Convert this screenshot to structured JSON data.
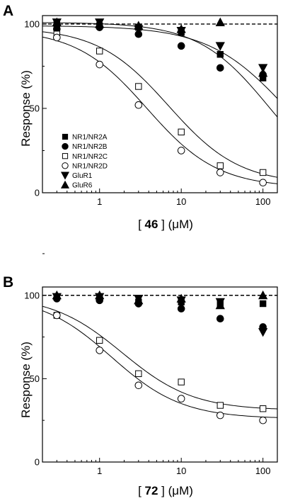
{
  "chart_data": [
    {
      "type": "scatter",
      "panel_label": "A",
      "xlabel_parts": [
        "[ ",
        "46",
        " ] (",
        "μ",
        "M)"
      ],
      "ylabel": "Response (%)",
      "x_scale": "log",
      "xlim": [
        0.2,
        150
      ],
      "ylim": [
        0,
        105
      ],
      "x_ticks": [
        1,
        10,
        100
      ],
      "x_tick_labels": [
        "1",
        "10",
        "100"
      ],
      "y_ticks": [
        0,
        50,
        100
      ],
      "y_tick_labels": [
        "0",
        "50",
        "100"
      ],
      "reference_line_y": 100,
      "legend_placement": "lower-left",
      "series": [
        {
          "name": "NR1/NR2A",
          "marker": "square-filled",
          "x": [
            0.3,
            1,
            3,
            10,
            30,
            100
          ],
          "y": [
            100,
            99,
            98,
            95,
            82,
            68
          ]
        },
        {
          "name": "NR1/NR2B",
          "marker": "circle-filled",
          "x": [
            0.3,
            1,
            3,
            10,
            30,
            100
          ],
          "y": [
            97,
            98,
            94,
            87,
            74,
            70
          ]
        },
        {
          "name": "NR1/NR2C",
          "marker": "square-open",
          "x": [
            0.3,
            1,
            3,
            10,
            30,
            100
          ],
          "y": [
            94,
            84,
            63,
            36,
            16,
            12
          ]
        },
        {
          "name": "NR1/NR2D",
          "marker": "circle-open",
          "x": [
            0.3,
            1,
            3,
            10,
            30,
            100
          ],
          "y": [
            92,
            76,
            52,
            25,
            12,
            6
          ]
        },
        {
          "name": "GluR1",
          "marker": "triangle-down-filled",
          "x": [
            0.3,
            1,
            3,
            10,
            30,
            100
          ],
          "y": [
            101,
            101,
            97,
            96,
            87,
            74
          ]
        },
        {
          "name": "GluR6",
          "marker": "triangle-up-filled",
          "x": [
            0.3,
            1,
            3,
            10,
            30,
            100
          ],
          "y": [
            101,
            100,
            99,
            97,
            101,
            71
          ]
        }
      ],
      "fit_curves": [
        {
          "top": 101,
          "bottom": 0,
          "ic50": 120,
          "hill": 1.0
        },
        {
          "top": 99,
          "bottom": 0,
          "ic50": 200,
          "hill": 0.9
        },
        {
          "top": 98,
          "bottom": 5,
          "ic50": 7,
          "hill": 1.0
        },
        {
          "top": 97,
          "bottom": 3,
          "ic50": 3.8,
          "hill": 1.0
        }
      ]
    },
    {
      "type": "scatter",
      "panel_label": "B",
      "xlabel_parts": [
        "[ ",
        "72",
        " ] (",
        "μ",
        "M)"
      ],
      "ylabel": "Response (%)",
      "x_scale": "log",
      "xlim": [
        0.2,
        150
      ],
      "ylim": [
        0,
        105
      ],
      "x_ticks": [
        1,
        10,
        100
      ],
      "x_tick_labels": [
        "1",
        "10",
        "100"
      ],
      "y_ticks": [
        0,
        50,
        100
      ],
      "y_tick_labels": [
        "0",
        "50",
        "100"
      ],
      "reference_line_y": 100,
      "series": [
        {
          "name": "NR1/NR2A",
          "marker": "square-filled",
          "x": [
            0.3,
            1,
            3,
            10,
            30,
            100
          ],
          "y": [
            99,
            98,
            96,
            96,
            95,
            95
          ]
        },
        {
          "name": "NR1/NR2B",
          "marker": "circle-filled",
          "x": [
            0.3,
            1,
            3,
            10,
            30,
            100
          ],
          "y": [
            98,
            97,
            95,
            92,
            86,
            81
          ]
        },
        {
          "name": "NR1/NR2C",
          "marker": "square-open",
          "x": [
            0.3,
            1,
            3,
            10,
            30,
            100
          ],
          "y": [
            88,
            73,
            53,
            48,
            34,
            32
          ]
        },
        {
          "name": "NR1/NR2D",
          "marker": "circle-open",
          "x": [
            0.3,
            1,
            3,
            10,
            30,
            100
          ],
          "y": [
            88,
            67,
            46,
            38,
            28,
            25
          ]
        },
        {
          "name": "GluR1",
          "marker": "triangle-down-filled",
          "x": [
            0.3,
            1,
            3,
            10,
            30,
            100
          ],
          "y": [
            99,
            99,
            98,
            97,
            96,
            78
          ]
        },
        {
          "name": "GluR6",
          "marker": "triangle-up-filled",
          "x": [
            0.3,
            1,
            3,
            10,
            30,
            100
          ],
          "y": [
            100,
            100,
            97,
            98,
            94,
            100
          ]
        }
      ],
      "fit_curves": [
        {
          "top": 100,
          "bottom": 31,
          "ic50": 1.9,
          "hill": 1.0
        },
        {
          "top": 100,
          "bottom": 26,
          "ic50": 1.4,
          "hill": 1.0
        }
      ]
    }
  ]
}
